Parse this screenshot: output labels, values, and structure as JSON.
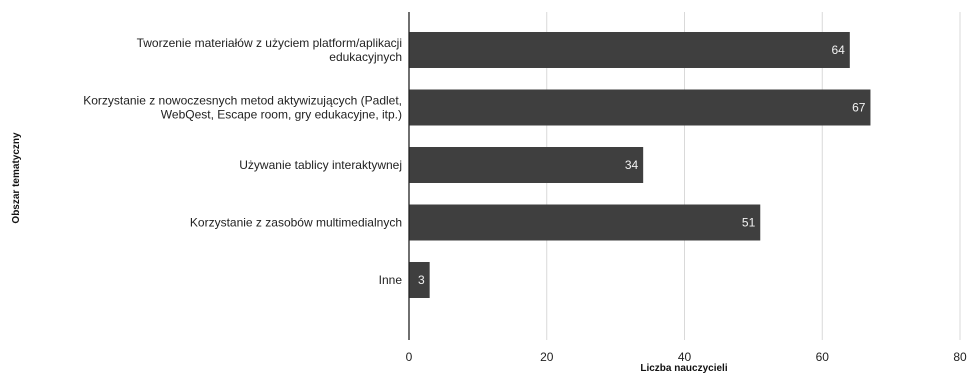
{
  "chart_data": {
    "type": "bar",
    "orientation": "horizontal",
    "title": "",
    "xlabel": "Liczba nauczycieli",
    "ylabel": "Obszar tematyczny",
    "categories": [
      [
        "Tworzenie materiałów z użyciem platform/aplikacji",
        "edukacyjnych"
      ],
      [
        "Korzystanie z nowoczesnych metod aktywizujących (Padlet,",
        "WebQest, Escape room, gry edukacyjne, itp.)"
      ],
      [
        "Używanie tablicy interaktywnej"
      ],
      [
        "Korzystanie z zasobów multimedialnych"
      ],
      [
        "Inne"
      ]
    ],
    "values": [
      64,
      67,
      34,
      51,
      3
    ],
    "xlim": [
      0,
      80
    ],
    "xticks": [
      0,
      20,
      40,
      60,
      80
    ],
    "grid": true,
    "bar_color": "#3f3f3f"
  }
}
